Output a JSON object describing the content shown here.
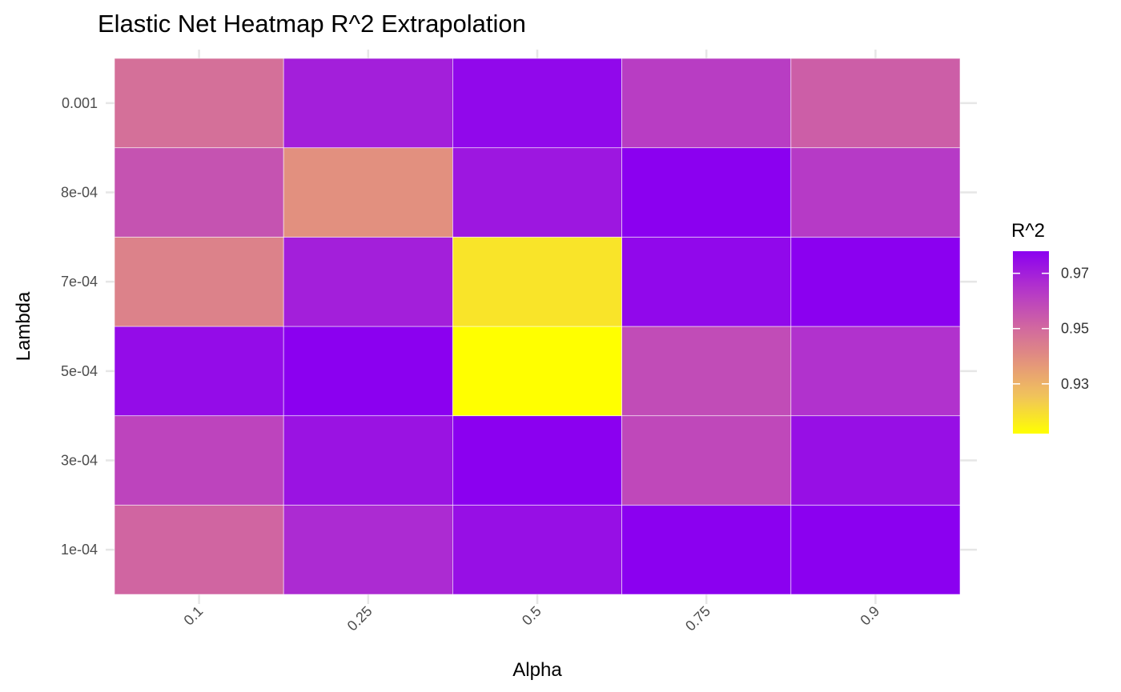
{
  "chart_data": {
    "type": "heatmap",
    "title": "Elastic Net Heatmap R^2 Extrapolation",
    "xlabel": "Alpha",
    "ylabel": "Lambda",
    "x_categories": [
      "0.1",
      "0.25",
      "0.5",
      "0.75",
      "0.9"
    ],
    "y_categories": [
      "1e-04",
      "3e-04",
      "5e-04",
      "7e-04",
      "8e-04",
      "0.001"
    ],
    "values": [
      [
        0.951,
        0.967,
        0.974,
        0.978,
        0.978
      ],
      [
        0.96,
        0.973,
        0.978,
        0.959,
        0.974
      ],
      [
        0.975,
        0.978,
        0.912,
        0.958,
        0.965
      ],
      [
        0.943,
        0.97,
        0.918,
        0.976,
        0.978
      ],
      [
        0.956,
        0.939,
        0.972,
        0.978,
        0.963
      ],
      [
        0.948,
        0.97,
        0.976,
        0.962,
        0.953
      ]
    ],
    "legend": {
      "title": "R^2",
      "ticks": [
        0.93,
        0.95,
        0.97
      ],
      "tick_labels": [
        "0.93",
        "0.95",
        "0.97"
      ],
      "min": 0.912,
      "max": 0.978,
      "placement": "right"
    },
    "colormap": [
      "#ffff00",
      "#f1c45a",
      "#e3927d",
      "#cf63a3",
      "#b233cc",
      "#8b00f0"
    ],
    "grid": true
  }
}
